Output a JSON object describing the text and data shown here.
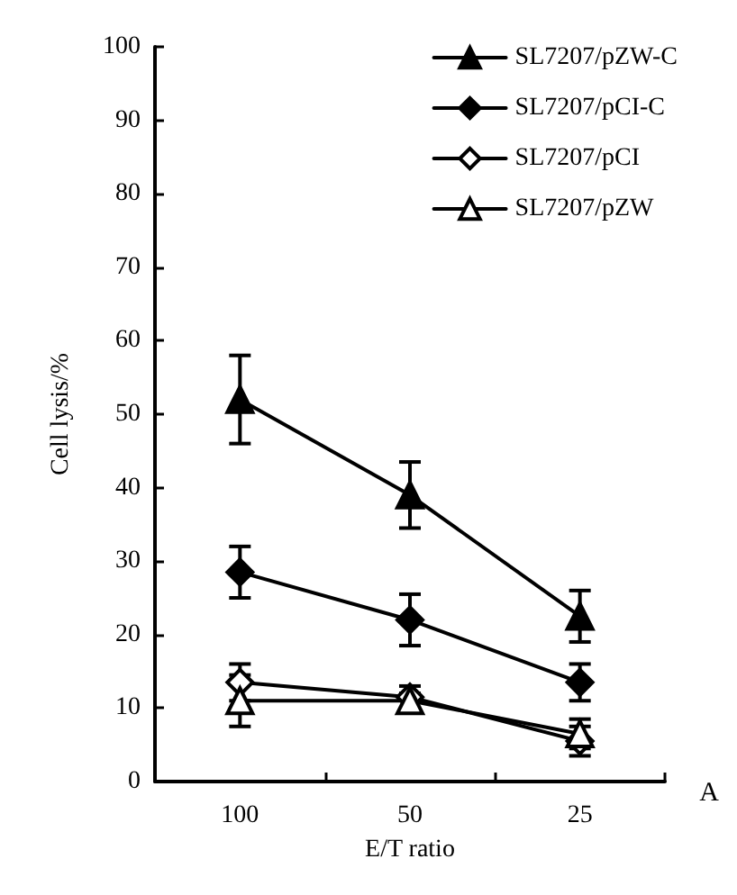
{
  "chart_data": {
    "type": "line",
    "xlabel": "E/T ratio",
    "ylabel": "Cell lysis/%",
    "categories": [
      "100",
      "50",
      "25"
    ],
    "series": [
      {
        "name": "SL7207/pZW-C",
        "color": "#000000",
        "marker": "triangle",
        "values": [
          52,
          39,
          22.5
        ],
        "errors": [
          6,
          4.5,
          3.5
        ]
      },
      {
        "name": "SL7207/pCI-C",
        "color": "#000000",
        "marker": "diamond",
        "values": [
          28.5,
          22,
          13.5
        ],
        "errors": [
          3.5,
          3.5,
          2.5
        ]
      },
      {
        "name": "SL7207/pCI",
        "color": "#000000",
        "marker": "diamond",
        "values": [
          13.5,
          11.5,
          5.5
        ],
        "errors": [
          2.5,
          1.5,
          2
        ]
      },
      {
        "name": "SL7207/pZW",
        "color": "#000000",
        "marker": "triangle",
        "values": [
          11,
          11,
          6.5
        ],
        "errors": [
          3.5,
          1,
          2
        ]
      }
    ],
    "ylim": [
      0,
      100
    ],
    "yticks": [
      0,
      10,
      20,
      30,
      40,
      50,
      60,
      70,
      80,
      90,
      100
    ],
    "grid": false,
    "legend": "top right",
    "line_style": "solid",
    "annotations": [
      {
        "text": "A"
      }
    ]
  }
}
